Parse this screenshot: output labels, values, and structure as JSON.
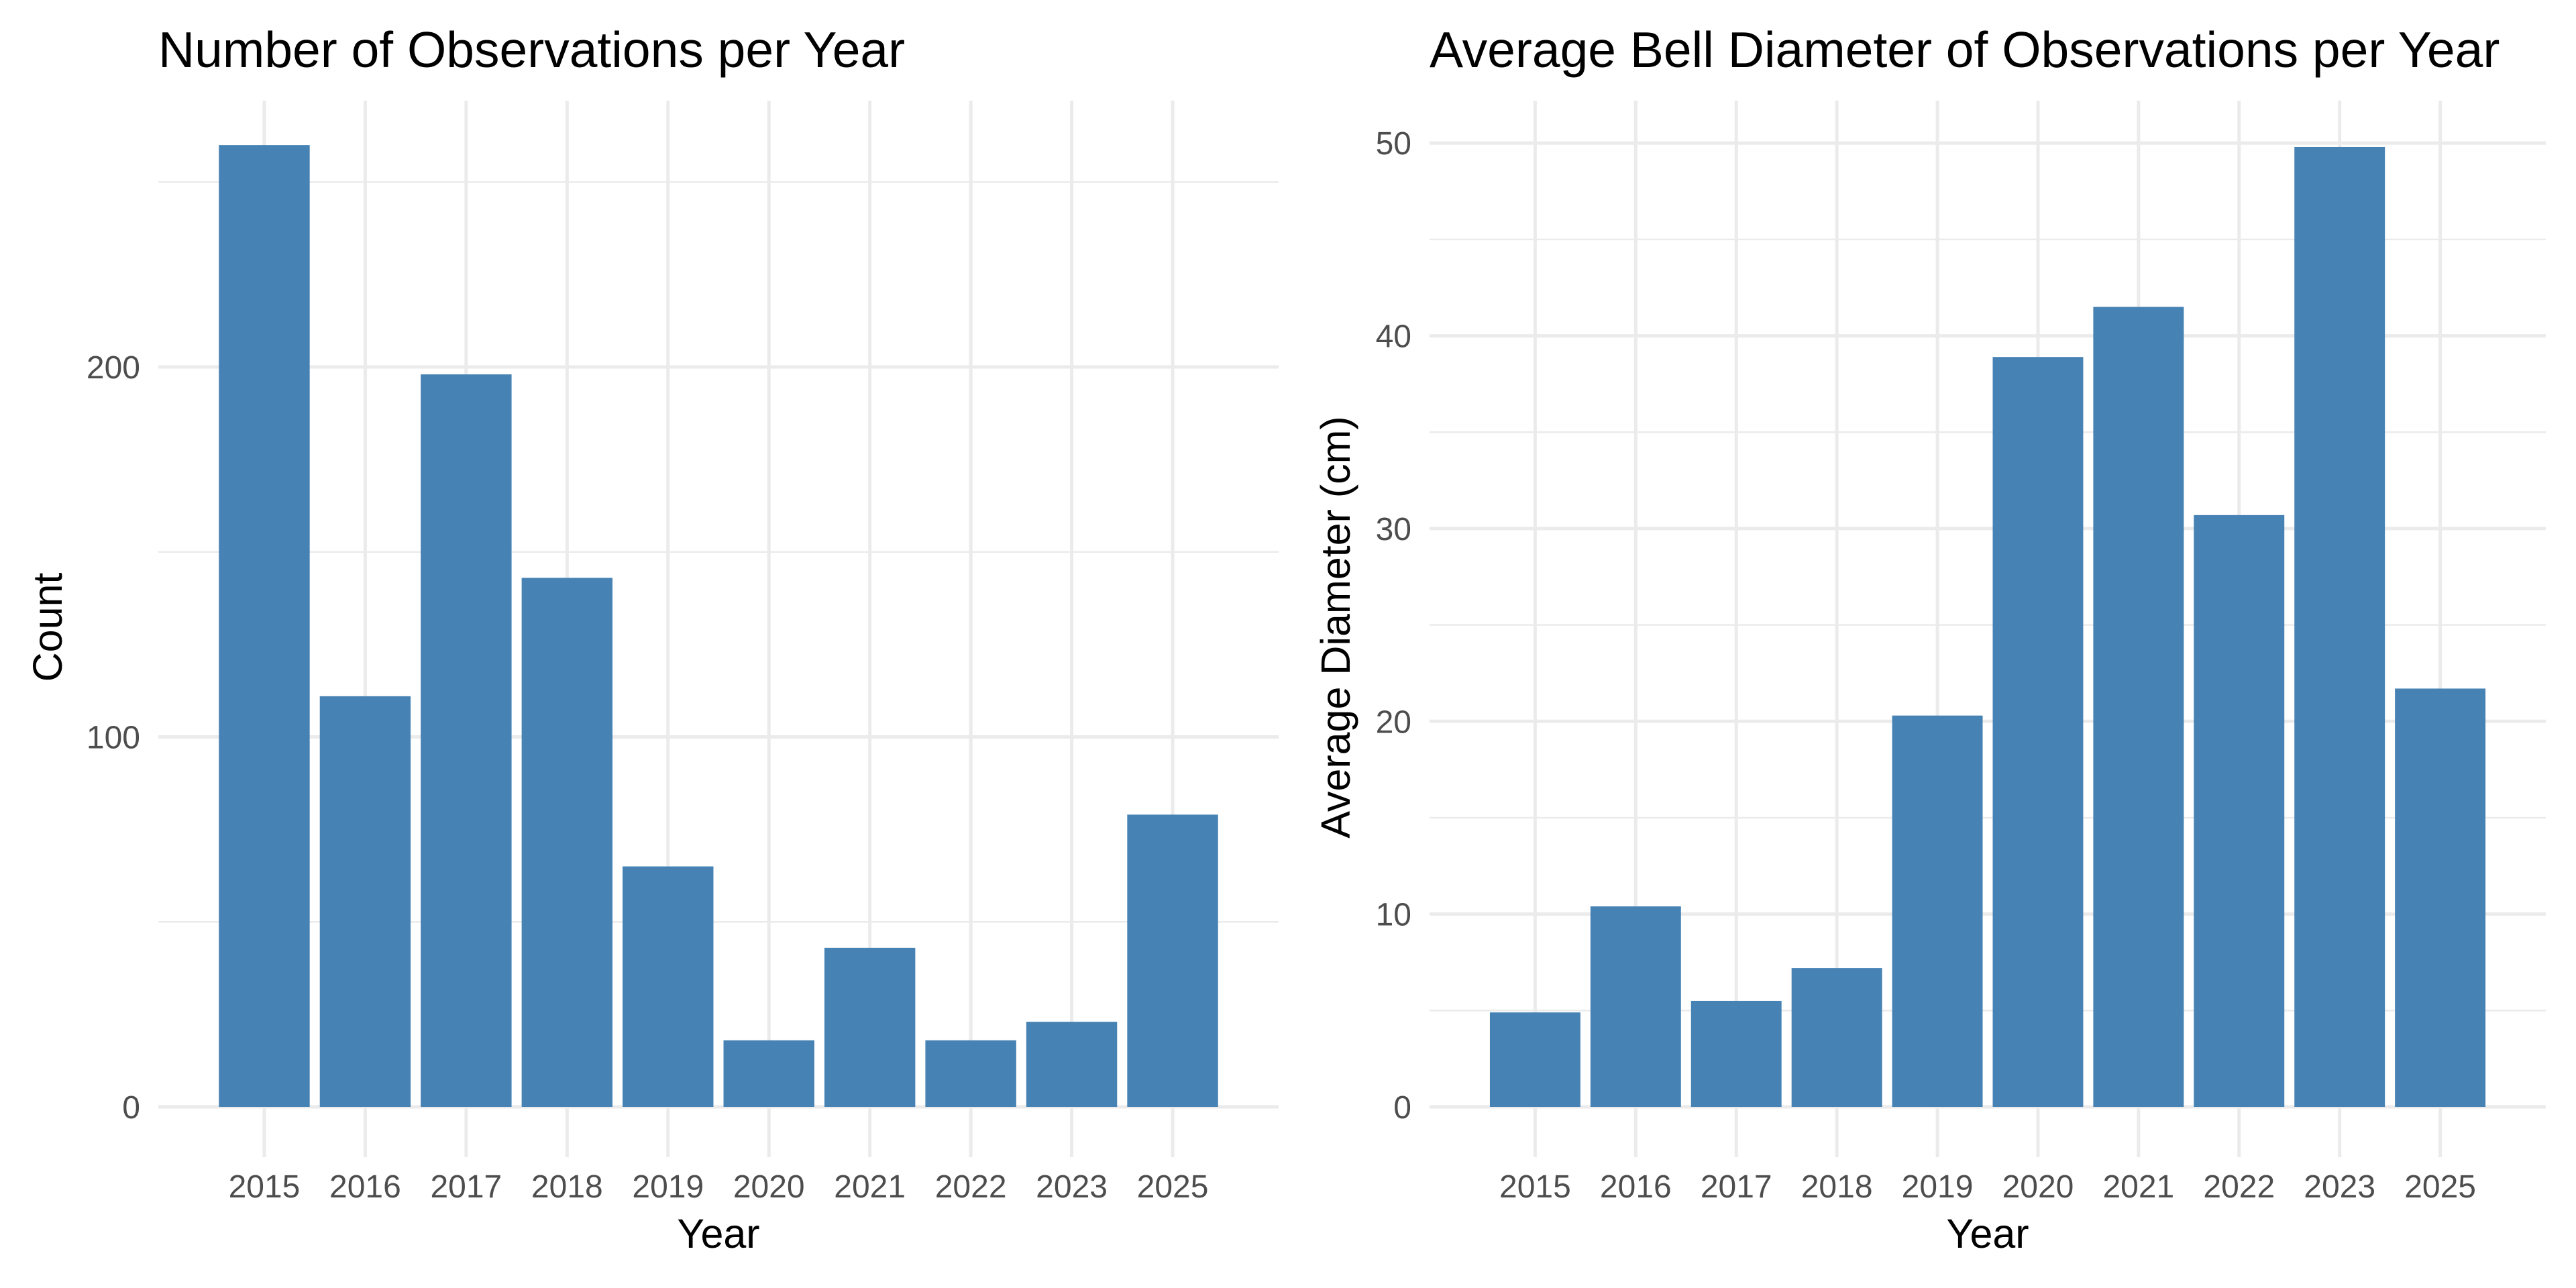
{
  "chart_data": [
    {
      "type": "bar",
      "title": "Number of Observations per Year",
      "xlabel": "Year",
      "ylabel": "Count",
      "categories": [
        "2015",
        "2016",
        "2017",
        "2018",
        "2019",
        "2020",
        "2021",
        "2022",
        "2023",
        "2025"
      ],
      "values": [
        260,
        111,
        198,
        143,
        65,
        18,
        43,
        18,
        23,
        79
      ],
      "ylim": [
        0,
        272
      ],
      "yticks": [
        0,
        100,
        200
      ],
      "grid": true,
      "bar_color": "#4682B4"
    },
    {
      "type": "bar",
      "title": "Average Bell Diameter of Observations per Year",
      "xlabel": "Year",
      "ylabel": "Average Diameter (cm)",
      "categories": [
        "2015",
        "2016",
        "2017",
        "2018",
        "2019",
        "2020",
        "2021",
        "2022",
        "2023",
        "2025"
      ],
      "values": [
        4.9,
        10.4,
        5.5,
        7.2,
        20.3,
        38.9,
        41.5,
        30.7,
        49.8,
        21.7
      ],
      "ylim": [
        0,
        52.2
      ],
      "yticks": [
        0,
        10,
        20,
        30,
        40,
        50
      ],
      "grid": true,
      "bar_color": "#4682B4"
    }
  ]
}
